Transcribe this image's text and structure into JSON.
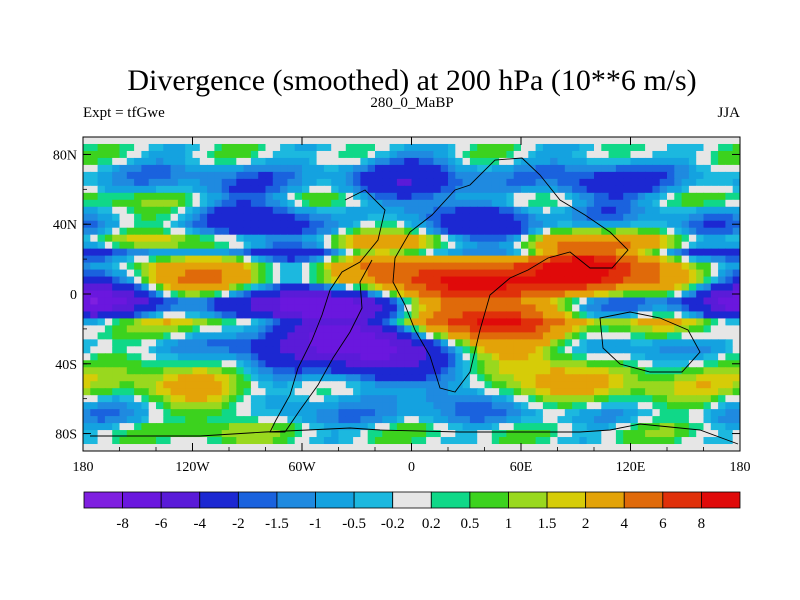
{
  "chart_data": {
    "type": "heatmap",
    "title": "Divergence (smoothed) at 200 hPa (10**6 m/s)",
    "left_string": "Expt = tfGwe",
    "center_string": "280_0_MaBP",
    "right_string": "JJA",
    "x": {
      "range": [
        -180,
        180
      ],
      "ticks": [
        {
          "value": -180,
          "label": "180"
        },
        {
          "value": -120,
          "label": "120W"
        },
        {
          "value": -60,
          "label": "60W"
        },
        {
          "value": 0,
          "label": "0"
        },
        {
          "value": 60,
          "label": "60E"
        },
        {
          "value": 120,
          "label": "120E"
        },
        {
          "value": 180,
          "label": "180"
        }
      ]
    },
    "y": {
      "range": [
        -90,
        90
      ],
      "ticks": [
        {
          "value": 80,
          "label": "80N"
        },
        {
          "value": 40,
          "label": "40N"
        },
        {
          "value": 0,
          "label": "0"
        },
        {
          "value": -40,
          "label": "40S"
        },
        {
          "value": -80,
          "label": "80S"
        }
      ]
    },
    "levels": [
      {
        "label": "-8",
        "value": -8
      },
      {
        "label": "-6",
        "value": -6
      },
      {
        "label": "-4",
        "value": -4
      },
      {
        "label": "-2",
        "value": -2
      },
      {
        "label": "-1.5",
        "value": -1.5
      },
      {
        "label": "-1",
        "value": -1
      },
      {
        "label": "-0.5",
        "value": -0.5
      },
      {
        "label": "-0.2",
        "value": -0.2
      },
      {
        "label": "0.2",
        "value": 0.2
      },
      {
        "label": "0.5",
        "value": 0.5
      },
      {
        "label": "1",
        "value": 1
      },
      {
        "label": "1.5",
        "value": 1.5
      },
      {
        "label": "2",
        "value": 2
      },
      {
        "label": "4",
        "value": 4
      },
      {
        "label": "6",
        "value": 6
      },
      {
        "label": "8",
        "value": 8
      }
    ],
    "colors": [
      "#7f1fe0",
      "#6a17de",
      "#5a1bd8",
      "#1c28d2",
      "#1a62de",
      "#1f8ae0",
      "#14a2e0",
      "#1cb8df",
      "#e6e6e6",
      "#10d888",
      "#3cd21e",
      "#99d81e",
      "#d6cc08",
      "#e3a308",
      "#e06a0a",
      "#e0300a",
      "#e00a0a"
    ],
    "bands": [
      {
        "lat": 88,
        "v": 0
      },
      {
        "lat": 78,
        "v": 0.1
      },
      {
        "lat": 70,
        "v": -1.2
      },
      {
        "lat": 62,
        "v": -1.0
      },
      {
        "lat": 54,
        "v": 0.8
      },
      {
        "lat": 46,
        "v": -0.8
      },
      {
        "lat": 38,
        "v": -1.5
      },
      {
        "lat": 30,
        "v": 0.5
      },
      {
        "lat": 24,
        "v": -2.5
      },
      {
        "lat": 16,
        "v": 0.8
      },
      {
        "lat": 8,
        "v": 1.5
      },
      {
        "lat": 2,
        "v": -0.5
      },
      {
        "lat": -4,
        "v": -3.0
      },
      {
        "lat": -10,
        "v": -2.0
      },
      {
        "lat": -16,
        "v": 1.5
      },
      {
        "lat": -22,
        "v": 0.5
      },
      {
        "lat": -30,
        "v": -1.5
      },
      {
        "lat": -38,
        "v": -1.0
      },
      {
        "lat": -46,
        "v": 0.1
      },
      {
        "lat": -54,
        "v": 0.6
      },
      {
        "lat": -62,
        "v": -0.6
      },
      {
        "lat": -70,
        "v": -1.2
      },
      {
        "lat": -78,
        "v": 0.3
      },
      {
        "lat": -88,
        "v": 0
      }
    ],
    "features": [
      {
        "lon": 40,
        "lat": -8,
        "v": 7,
        "r": 28
      },
      {
        "lon": -20,
        "lat": 10,
        "v": 4,
        "r": 30
      },
      {
        "lon": 90,
        "lat": 18,
        "v": 7,
        "r": 18
      },
      {
        "lon": 60,
        "lat": 15,
        "v": 4,
        "r": 22
      },
      {
        "lon": 130,
        "lat": 12,
        "v": 3,
        "r": 28
      },
      {
        "lon": -55,
        "lat": -12,
        "v": -7,
        "r": 25
      },
      {
        "lon": -20,
        "lat": -30,
        "v": -6,
        "r": 22
      },
      {
        "lon": 50,
        "lat": 30,
        "v": -4,
        "r": 18
      },
      {
        "lon": -130,
        "lat": 8,
        "v": 2.5,
        "r": 30
      },
      {
        "lon": -170,
        "lat": 0,
        "v": -3.5,
        "r": 20
      },
      {
        "lon": 170,
        "lat": 0,
        "v": -3.5,
        "r": 20
      },
      {
        "lon": 150,
        "lat": -48,
        "v": 1.8,
        "r": 25
      },
      {
        "lon": 70,
        "lat": -48,
        "v": 2.0,
        "r": 20
      },
      {
        "lon": -120,
        "lat": -45,
        "v": 1.6,
        "r": 22
      },
      {
        "lon": 0,
        "lat": 60,
        "v": -2.5,
        "r": 20
      },
      {
        "lon": -80,
        "lat": 45,
        "v": -2.0,
        "r": 22
      },
      {
        "lon": 100,
        "lat": 55,
        "v": -2.2,
        "r": 20
      },
      {
        "lon": -100,
        "lat": -70,
        "v": 1.5,
        "r": 18
      },
      {
        "lon": 20,
        "lat": -55,
        "v": -1.8,
        "r": 15
      }
    ]
  }
}
